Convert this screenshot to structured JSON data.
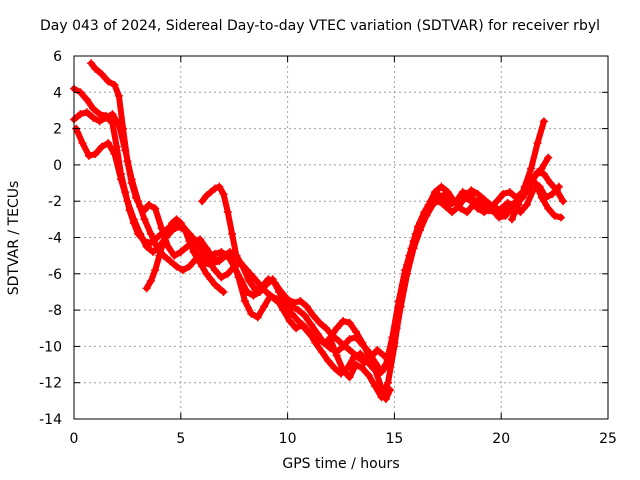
{
  "chart_data": {
    "type": "scatter",
    "title": "Day 043 of 2024, Sidereal Day-to-day VTEC variation (SDTVAR) for receiver rbyl",
    "xlabel": "GPS time / hours",
    "ylabel": "SDTVAR / TECUs",
    "xlim": [
      0,
      25
    ],
    "ylim": [
      -14,
      6
    ],
    "xticks": [
      0,
      5,
      10,
      15,
      20,
      25
    ],
    "yticks": [
      -14,
      -12,
      -10,
      -8,
      -6,
      -4,
      -2,
      0,
      2,
      4,
      6
    ],
    "grid": true,
    "marker": "+",
    "color": "#ff0000",
    "series": [
      {
        "x": [
          0.0,
          0.3,
          0.6,
          0.9,
          1.2,
          1.5,
          1.8,
          2.0,
          2.2,
          2.4,
          2.6,
          2.8,
          3.0,
          3.3,
          3.6,
          3.9,
          4.2,
          4.5,
          4.8,
          5.1,
          5.4,
          5.7,
          6.0,
          6.3,
          6.6,
          6.9,
          7.2,
          7.5,
          7.8,
          8.1,
          8.4,
          8.7,
          9.0,
          9.3,
          9.6,
          9.9,
          10.2,
          10.5,
          10.8,
          11.1,
          11.4,
          11.7,
          12.0,
          12.3,
          12.6,
          12.9,
          13.2,
          13.5,
          13.8,
          14.1,
          14.4,
          14.7,
          15.0,
          15.3,
          15.6,
          15.9,
          16.2,
          16.5,
          16.8,
          17.1,
          17.4,
          17.7,
          18.0,
          18.3,
          18.6,
          18.9,
          19.2,
          19.5,
          19.8,
          20.1,
          20.4,
          20.7,
          21.0,
          21.3,
          21.6,
          21.9,
          22.2,
          22.5,
          22.8
        ],
        "y": [
          4.2,
          4.0,
          3.6,
          3.1,
          2.8,
          2.7,
          2.3,
          1.0,
          -0.5,
          -1.5,
          -2.5,
          -3.2,
          -3.8,
          -4.2,
          -4.3,
          -4.0,
          -3.7,
          -3.4,
          -3.3,
          -3.4,
          -3.8,
          -4.2,
          -4.8,
          -5.0,
          -4.9,
          -4.8,
          -5.0,
          -5.6,
          -6.3,
          -7.0,
          -7.2,
          -7.0,
          -6.6,
          -6.3,
          -7.0,
          -7.6,
          -7.8,
          -8.0,
          -8.3,
          -8.8,
          -9.3,
          -9.8,
          -9.6,
          -10.5,
          -11.3,
          -11.7,
          -11.0,
          -11.2,
          -11.6,
          -12.2,
          -12.8,
          -12.0,
          -10.0,
          -7.5,
          -5.5,
          -4.2,
          -3.2,
          -2.6,
          -2.1,
          -2.0,
          -2.3,
          -2.6,
          -2.3,
          -1.8,
          -2.0,
          -2.4,
          -2.6,
          -2.4,
          -2.0,
          -1.6,
          -1.5,
          -1.8,
          -1.5,
          -0.8,
          -1.0,
          -1.8,
          -2.4,
          -2.8,
          -2.9
        ]
      },
      {
        "x": [
          0.8,
          1.0,
          1.3,
          1.6,
          1.9,
          2.1,
          2.3,
          2.5,
          2.7,
          2.9,
          3.1,
          3.3,
          3.5,
          3.8,
          4.1,
          4.4,
          4.7,
          5.0,
          5.3,
          5.6,
          5.9,
          6.2,
          6.5,
          6.8,
          7.1,
          7.4,
          7.7,
          8.0,
          8.3,
          8.6,
          8.9,
          9.2,
          9.5,
          9.8,
          10.1,
          10.4,
          10.7,
          11.0,
          11.3,
          11.6,
          11.9,
          12.2,
          12.5,
          12.8,
          13.1,
          13.4,
          13.7,
          14.0,
          14.3,
          14.6,
          14.9,
          15.2,
          15.5,
          15.8,
          16.1,
          16.4,
          16.7,
          17.0,
          17.3,
          17.6,
          17.9,
          18.2,
          18.5,
          18.8,
          19.1,
          19.4,
          19.7,
          20.0,
          20.3,
          20.6,
          20.9,
          21.2,
          21.5,
          21.8,
          22.1,
          22.4,
          22.7
        ],
        "y": [
          5.6,
          5.3,
          5.0,
          4.6,
          4.4,
          3.8,
          2.0,
          0.2,
          -1.0,
          -1.8,
          -2.3,
          -2.5,
          -2.2,
          -2.4,
          -3.5,
          -4.5,
          -5.0,
          -4.8,
          -4.5,
          -4.2,
          -4.1,
          -4.6,
          -5.1,
          -5.3,
          -5.0,
          -5.2,
          -6.2,
          -7.5,
          -8.2,
          -8.4,
          -7.8,
          -7.2,
          -7.4,
          -8.0,
          -8.6,
          -9.0,
          -8.8,
          -9.2,
          -9.8,
          -10.3,
          -10.8,
          -11.2,
          -11.5,
          -11.2,
          -10.6,
          -10.4,
          -10.8,
          -11.2,
          -11.5,
          -11.0,
          -9.5,
          -7.5,
          -5.8,
          -4.6,
          -3.4,
          -2.6,
          -2.0,
          -1.6,
          -1.8,
          -2.2,
          -2.0,
          -1.5,
          -1.6,
          -2.0,
          -2.3,
          -2.5,
          -2.6,
          -2.4,
          -2.1,
          -2.2,
          -2.6,
          -2.2,
          -1.4,
          -1.2,
          -1.8,
          -1.6,
          -1.2
        ]
      },
      {
        "x": [
          0.1,
          0.4,
          0.7,
          1.0,
          1.3,
          1.6,
          1.9,
          2.2,
          2.5,
          2.8,
          3.1,
          3.4,
          3.7,
          4.0,
          4.3,
          4.6,
          4.9,
          5.2,
          5.5,
          5.8,
          6.1,
          6.4,
          6.7,
          7.0,
          7.3,
          7.6,
          7.9,
          8.2,
          8.5,
          8.8,
          9.1,
          9.4,
          9.7,
          10.0,
          10.3,
          10.6,
          10.9,
          11.2,
          11.5,
          11.8,
          12.1,
          12.4,
          12.7,
          13.0,
          13.3,
          13.6,
          13.9,
          14.2,
          14.5,
          14.8,
          15.1,
          15.4,
          15.7,
          16.0,
          16.3,
          16.6,
          16.9,
          17.2,
          17.5,
          17.8,
          18.1,
          18.4,
          18.7,
          19.0,
          19.3,
          19.6,
          19.9,
          20.2,
          20.5,
          20.8,
          21.1,
          21.4,
          21.7,
          22.0,
          22.3,
          22.6,
          22.9
        ],
        "y": [
          2.0,
          1.2,
          0.5,
          0.6,
          1.0,
          1.2,
          0.6,
          -0.8,
          -2.0,
          -3.0,
          -3.8,
          -4.5,
          -4.8,
          -4.5,
          -4.0,
          -3.6,
          -3.4,
          -3.6,
          -4.2,
          -4.9,
          -5.4,
          -5.5,
          -5.3,
          -5.0,
          -4.8,
          -5.0,
          -5.6,
          -6.4,
          -6.9,
          -6.7,
          -6.3,
          -6.5,
          -7.0,
          -7.4,
          -7.6,
          -7.5,
          -7.8,
          -8.3,
          -8.7,
          -9.0,
          -9.4,
          -9.7,
          -10.0,
          -10.3,
          -10.6,
          -10.9,
          -10.6,
          -10.2,
          -10.5,
          -10.8,
          -9.0,
          -6.6,
          -5.0,
          -3.8,
          -3.0,
          -2.2,
          -1.5,
          -1.2,
          -1.5,
          -2.0,
          -2.4,
          -2.6,
          -2.2,
          -1.9,
          -2.2,
          -2.5,
          -2.9,
          -2.8,
          -2.4,
          -2.0,
          -1.6,
          -0.9,
          -0.4,
          -0.5,
          -1.0,
          -1.4,
          -2.0
        ]
      },
      {
        "x": [
          0.0,
          0.3,
          0.6,
          0.9,
          1.2,
          1.5,
          1.8,
          2.1,
          2.4,
          2.7,
          3.0,
          3.3,
          3.6,
          3.9,
          4.2,
          4.5,
          4.8,
          5.1,
          5.4,
          5.7,
          6.0,
          6.3,
          6.6,
          6.9,
          7.2,
          7.5,
          7.8,
          8.1,
          8.4,
          8.7,
          9.0,
          9.3,
          9.6,
          9.9,
          10.2,
          10.5,
          10.8,
          11.1,
          11.4,
          11.7,
          12.0,
          12.3,
          12.6,
          12.9,
          13.2,
          13.5,
          13.8,
          14.1,
          14.4,
          14.7,
          15.0,
          15.3,
          15.6,
          15.9,
          16.2,
          16.5,
          16.8,
          17.1,
          17.4,
          17.7,
          18.0,
          18.3,
          18.6,
          18.9,
          19.2,
          19.5,
          19.8,
          20.1,
          20.4,
          20.7,
          21.0,
          21.3,
          21.6,
          21.9,
          22.2
        ],
        "y": [
          2.5,
          2.8,
          2.9,
          2.6,
          2.4,
          2.6,
          2.8,
          2.2,
          0.8,
          -0.8,
          -2.0,
          -3.0,
          -3.8,
          -4.6,
          -5.0,
          -5.3,
          -5.6,
          -5.8,
          -5.6,
          -5.2,
          -5.0,
          -5.3,
          -5.8,
          -6.2,
          -6.0,
          -5.6,
          -5.4,
          -5.8,
          -6.2,
          -6.6,
          -7.0,
          -7.3,
          -7.6,
          -7.9,
          -8.2,
          -8.6,
          -9.0,
          -9.4,
          -9.6,
          -9.8,
          -10.1,
          -10.3,
          -10.0,
          -9.6,
          -9.5,
          -9.9,
          -10.3,
          -10.9,
          -11.4,
          -11.0,
          -9.8,
          -7.8,
          -6.0,
          -4.6,
          -3.6,
          -2.8,
          -2.2,
          -1.8,
          -1.6,
          -1.9,
          -2.1,
          -1.8,
          -1.4,
          -1.6,
          -1.9,
          -2.2,
          -2.4,
          -2.6,
          -2.4,
          -2.0,
          -1.8,
          -1.2,
          -0.6,
          -0.2,
          0.4
        ]
      },
      {
        "x": [
          3.4,
          3.6,
          3.8,
          4.0,
          4.2,
          4.4,
          4.6,
          4.8,
          5.0,
          5.2,
          5.4,
          5.6,
          5.8,
          6.0,
          6.2,
          6.4,
          6.6,
          6.8,
          7.0
        ],
        "y": [
          -6.8,
          -6.4,
          -5.8,
          -5.0,
          -4.2,
          -3.6,
          -3.2,
          -3.0,
          -3.2,
          -3.6,
          -4.2,
          -4.8,
          -5.2,
          -5.6,
          -6.0,
          -6.3,
          -6.6,
          -6.8,
          -7.0
        ]
      },
      {
        "x": [
          6.0,
          6.2,
          6.4,
          6.6,
          6.8,
          7.0,
          7.2,
          7.4,
          7.6
        ],
        "y": [
          -2.0,
          -1.7,
          -1.5,
          -1.3,
          -1.2,
          -1.6,
          -2.6,
          -3.8,
          -5.0
        ]
      },
      {
        "x": [
          12.0,
          12.3,
          12.6,
          12.9,
          13.2,
          13.5,
          13.8,
          14.1,
          14.4,
          14.6,
          14.8
        ],
        "y": [
          -9.5,
          -9.0,
          -8.6,
          -8.7,
          -9.2,
          -9.8,
          -10.5,
          -11.3,
          -12.3,
          -12.9,
          -12.4
        ]
      },
      {
        "x": [
          20.5,
          20.8,
          21.1,
          21.4,
          21.7,
          22.0
        ],
        "y": [
          -3.0,
          -2.2,
          -1.2,
          -0.2,
          1.2,
          2.4
        ]
      }
    ]
  }
}
